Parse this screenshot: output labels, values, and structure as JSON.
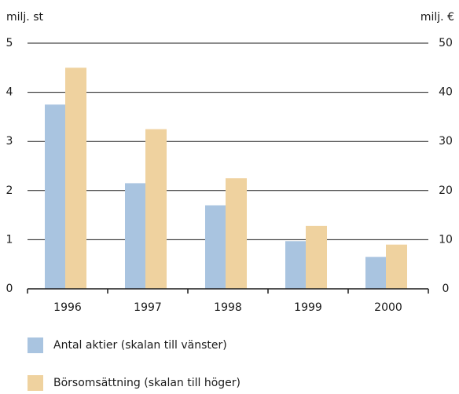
{
  "chart_data": {
    "type": "bar",
    "y_label": "milj. st",
    "y2_label": "milj. €",
    "categories": [
      "1996",
      "1997",
      "1998",
      "1999",
      "2000"
    ],
    "series": [
      {
        "name": "Antal aktier (skalan till vänster)",
        "color": "#a9c4e0",
        "values": [
          3.75,
          2.15,
          1.7,
          0.97,
          0.65
        ]
      },
      {
        "name": "Börsomsättning (skalan till höger)",
        "color": "#efd29f",
        "axis": "y2",
        "values": [
          45,
          32.5,
          22.5,
          12.8,
          9
        ]
      }
    ],
    "ylim": [
      0,
      5
    ],
    "yticks": [
      0,
      1,
      2,
      3,
      4,
      5
    ],
    "y2lim": [
      0,
      50
    ],
    "y2ticks": [
      0,
      10,
      20,
      30,
      40,
      50
    ],
    "grid": true
  }
}
